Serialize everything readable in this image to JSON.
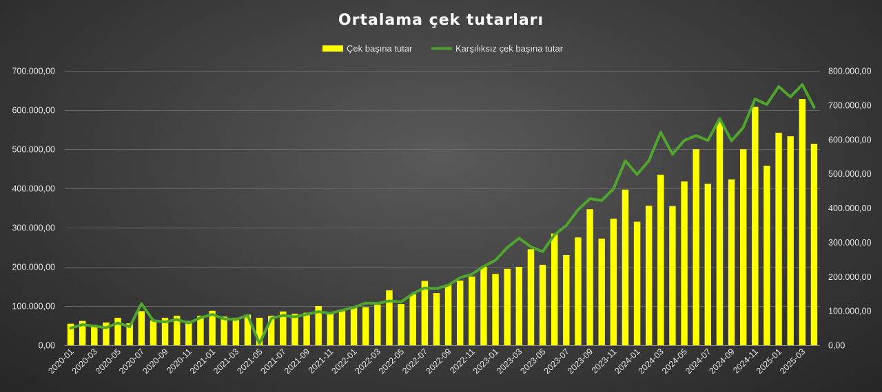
{
  "chart_data": {
    "type": "bar",
    "title": "Ortalama çek tutarları",
    "legend_position": "top",
    "grid": true,
    "colors": {
      "bar": "#ffff00",
      "line": "#4fa52d"
    },
    "categories": [
      "2020-01",
      "2020-02",
      "2020-03",
      "2020-04",
      "2020-05",
      "2020-06",
      "2020-07",
      "2020-08",
      "2020-09",
      "2020-10",
      "2020-11",
      "2020-12",
      "2021-01",
      "2021-02",
      "2021-03",
      "2021-04",
      "2021-05",
      "2021-06",
      "2021-07",
      "2021-08",
      "2021-09",
      "2021-10",
      "2021-11",
      "2021-12",
      "2022-01",
      "2022-02",
      "2022-03",
      "2022-04",
      "2022-05",
      "2022-06",
      "2022-07",
      "2022-08",
      "2022-09",
      "2022-10",
      "2022-11",
      "2022-12",
      "2023-01",
      "2023-02",
      "2023-03",
      "2023-04",
      "2023-05",
      "2023-06",
      "2023-07",
      "2023-08",
      "2023-09",
      "2023-10",
      "2023-11",
      "2023-12",
      "2024-01",
      "2024-02",
      "2024-03",
      "2024-04",
      "2024-05",
      "2024-06",
      "2024-07",
      "2024-08",
      "2024-09",
      "2024-10",
      "2024-11",
      "2024-12",
      "2025-01",
      "2025-02",
      "2025-03",
      "2025-04"
    ],
    "series": [
      {
        "name": "Çek başına tutar",
        "type": "bar",
        "axis": "left",
        "values": [
          55000,
          62000,
          52000,
          58000,
          70000,
          56000,
          87000,
          63000,
          70000,
          75000,
          62000,
          75000,
          88000,
          73000,
          70000,
          78000,
          70000,
          75000,
          86000,
          80000,
          83000,
          100000,
          80000,
          88000,
          97000,
          97000,
          103000,
          140000,
          105000,
          130000,
          164000,
          133000,
          155000,
          165000,
          175000,
          200000,
          182000,
          195000,
          200000,
          245000,
          205000,
          285000,
          230000,
          275000,
          347000,
          272000,
          323000,
          397000,
          315000,
          356000,
          435000,
          355000,
          418000,
          500000,
          412000,
          570000,
          423000,
          500000,
          608000,
          458000,
          542000,
          533000,
          628000,
          514000
        ]
      },
      {
        "name": "Karşılıksız çek başına tutar",
        "type": "line",
        "axis": "right",
        "values": [
          50000,
          60000,
          56000,
          51000,
          65000,
          54000,
          121000,
          72000,
          68000,
          75000,
          65000,
          80000,
          90000,
          77000,
          75000,
          87000,
          5000,
          78000,
          87000,
          83000,
          90000,
          98000,
          93000,
          102000,
          110000,
          123000,
          122000,
          129000,
          126000,
          151000,
          167000,
          165000,
          175000,
          197000,
          207000,
          230000,
          248000,
          285000,
          312000,
          287000,
          273000,
          322000,
          349000,
          395000,
          427000,
          422000,
          456000,
          538000,
          498000,
          538000,
          621000,
          557000,
          597000,
          611000,
          597000,
          661000,
          596000,
          635000,
          718000,
          702000,
          754000,
          724000,
          760000,
          694000
        ]
      }
    ],
    "x_tick_labels": [
      "2020-01",
      "2020-03",
      "2020-05",
      "2020-07",
      "2020-09",
      "2020-11",
      "2021-01",
      "2021-03",
      "2021-05",
      "2021-07",
      "2021-09",
      "2021-11",
      "2022-01",
      "2022-03",
      "2022-05",
      "2022-07",
      "2022-09",
      "2022-11",
      "2023-01",
      "2023-03",
      "2023-05",
      "2023-07",
      "2023-09",
      "2023-11",
      "2024-01",
      "2024-03",
      "2024-05",
      "2024-07",
      "2024-09",
      "2024-11",
      "2025-01",
      "2025-03"
    ],
    "y_left": {
      "ylim": [
        0,
        700000
      ],
      "tick_labels": [
        "0,00",
        "100.000,00",
        "200.000,00",
        "300.000,00",
        "400.000,00",
        "500.000,00",
        "600.000,00",
        "700.000,00"
      ]
    },
    "y_right": {
      "ylim": [
        0,
        800000
      ],
      "tick_labels": [
        "0,00",
        "100.000,00",
        "200.000,00",
        "300.000,00",
        "400.000,00",
        "500.000,00",
        "600.000,00",
        "700.000,00",
        "800.000,00"
      ]
    }
  }
}
